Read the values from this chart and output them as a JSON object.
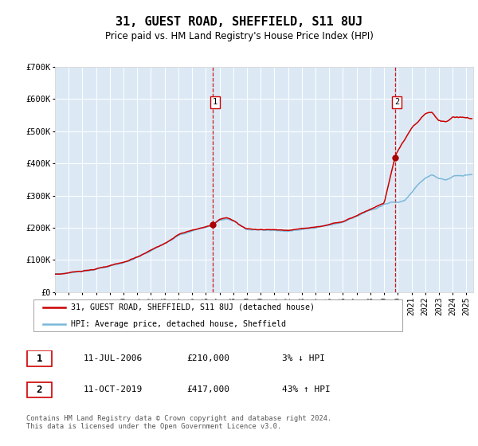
{
  "title": "31, GUEST ROAD, SHEFFIELD, S11 8UJ",
  "subtitle": "Price paid vs. HM Land Registry's House Price Index (HPI)",
  "title_fontsize": 11,
  "subtitle_fontsize": 8.5,
  "bg_color": "#dce9f5",
  "plot_bg_color": "#dce9f5",
  "hpi_color": "#7ab8d9",
  "price_color": "#cc0000",
  "marker_color": "#aa0000",
  "vline_color": "#cc0000",
  "ylim": [
    0,
    700000
  ],
  "yticks": [
    0,
    100000,
    200000,
    300000,
    400000,
    500000,
    600000,
    700000
  ],
  "ytick_labels": [
    "£0",
    "£100K",
    "£200K",
    "£300K",
    "£400K",
    "£500K",
    "£600K",
    "£700K"
  ],
  "legend1_label": "31, GUEST ROAD, SHEFFIELD, S11 8UJ (detached house)",
  "legend2_label": "HPI: Average price, detached house, Sheffield",
  "event1_label": "1",
  "event1_date": "11-JUL-2006",
  "event1_price": "£210,000",
  "event1_pct": "3% ↓ HPI",
  "event1_year": 2006.53,
  "event1_value": 210000,
  "event2_label": "2",
  "event2_date": "11-OCT-2019",
  "event2_price": "£417,000",
  "event2_pct": "43% ↑ HPI",
  "event2_year": 2019.78,
  "event2_value": 417000,
  "footer": "Contains HM Land Registry data © Crown copyright and database right 2024.\nThis data is licensed under the Open Government Licence v3.0.",
  "xstart": 1995.0,
  "xend": 2025.5
}
